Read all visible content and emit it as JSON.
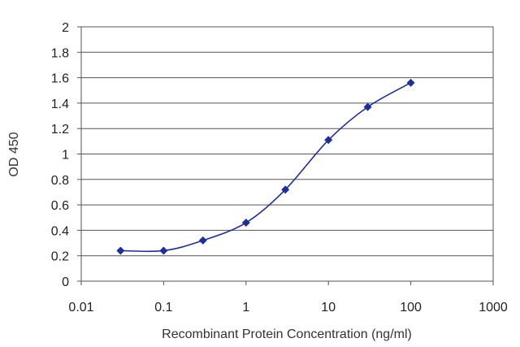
{
  "chart_data": {
    "type": "line",
    "title": "",
    "xlabel": "Recombinant Protein Concentration (ng/ml)",
    "ylabel": "OD 450",
    "x_scale": "log",
    "xlim": [
      0.01,
      1000
    ],
    "ylim": [
      0,
      2
    ],
    "x_ticks": [
      "0.01",
      "0.1",
      "1",
      "10",
      "100",
      "1000"
    ],
    "y_ticks": [
      "0",
      "0.2",
      "0.4",
      "0.6",
      "0.8",
      "1",
      "1.2",
      "1.4",
      "1.6",
      "1.8",
      "2"
    ],
    "grid": "horizontal",
    "legend": "none",
    "series": [
      {
        "color": "#1f2f9a",
        "x": [
          0.03,
          0.1,
          0.3,
          1,
          3,
          10,
          30,
          100
        ],
        "y": [
          0.24,
          0.24,
          0.32,
          0.46,
          0.72,
          1.11,
          1.37,
          1.56
        ]
      }
    ]
  }
}
